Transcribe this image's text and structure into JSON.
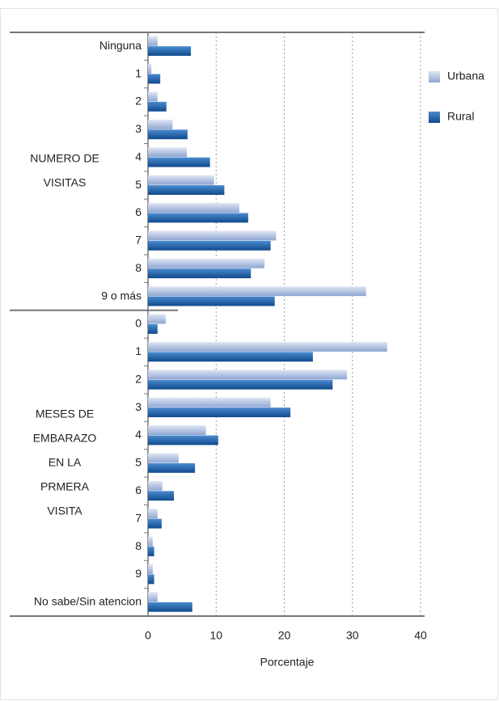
{
  "chart_data": {
    "type": "bar",
    "orientation": "horizontal",
    "categories": [
      "Ninguna",
      "1",
      "2",
      "3",
      "4",
      "5",
      "6",
      "7",
      "8",
      "9 o más",
      "0",
      "1",
      "2",
      "3",
      "4",
      "5",
      "6",
      "7",
      "8",
      "9",
      "No sabe/Sin atencion"
    ],
    "groups": [
      {
        "label_lines": [
          "NUMERO DE",
          "VISITAS"
        ],
        "start": 0,
        "end": 9
      },
      {
        "label_lines": [
          "MESES DE",
          "EMBARAZO",
          "EN LA",
          "PRMERA",
          "VISITA"
        ],
        "start": 10,
        "end": 20
      }
    ],
    "series": [
      {
        "name": "Urbana",
        "color": "#aebfdf",
        "values": [
          1.4,
          0.5,
          1.4,
          3.6,
          5.7,
          9.7,
          13.4,
          18.8,
          17.1,
          32.0,
          2.6,
          35.1,
          29.2,
          18.0,
          8.5,
          4.5,
          2.1,
          1.4,
          0.7,
          0.7,
          1.4
        ]
      },
      {
        "name": "Rural",
        "color": "#1f5fa8",
        "values": [
          6.3,
          1.8,
          2.7,
          5.8,
          9.1,
          11.2,
          14.7,
          18.0,
          15.1,
          18.6,
          1.4,
          24.2,
          27.1,
          20.9,
          10.3,
          6.9,
          3.8,
          2.0,
          0.9,
          0.9,
          6.5
        ]
      }
    ],
    "xlabel": "Porcentaje",
    "xlim": [
      0,
      40
    ],
    "xticks": [
      0,
      10,
      20,
      30,
      40
    ],
    "grid": true,
    "legend": "right"
  }
}
